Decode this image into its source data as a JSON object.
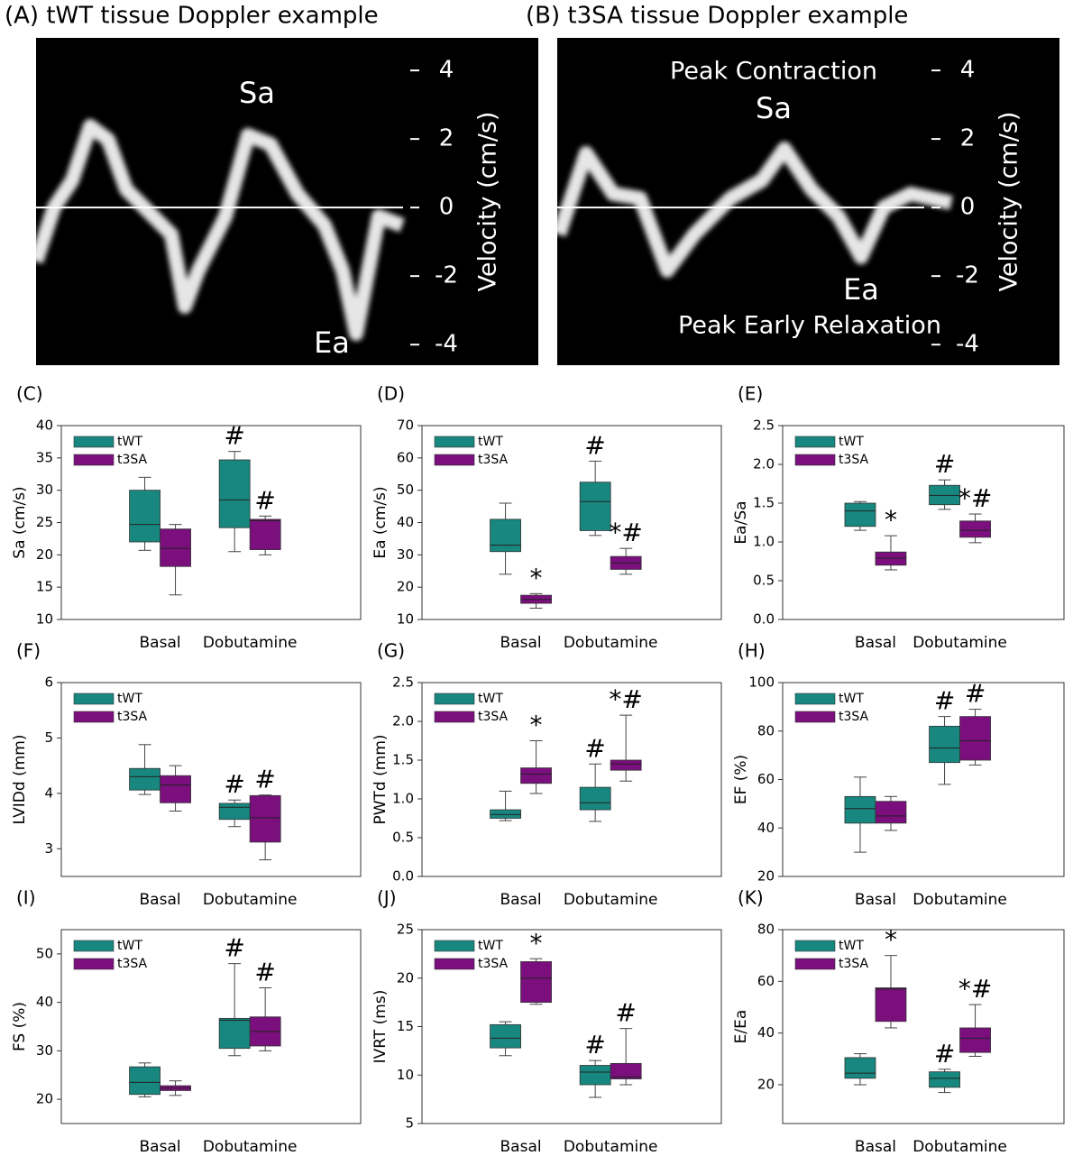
{
  "chart_data": [
    {
      "type": "doppler",
      "title": "(A) tWT tissue Doppler example",
      "ylabel": "Velocity (cm/s)",
      "ylim": [
        -4.6,
        4.95
      ],
      "yticks": [
        -4,
        -2,
        0,
        2,
        4
      ],
      "grid": true,
      "annotations": [
        "Sa",
        "Ea"
      ]
    },
    {
      "type": "doppler",
      "title": "(B) t3SA tissue Doppler example",
      "ylabel": "Velocity (cm/s)",
      "ylim": [
        -4.6,
        4.95
      ],
      "yticks": [
        -4,
        -2,
        0,
        2,
        4
      ],
      "grid": true,
      "annotations": [
        "Peak Contraction",
        "Sa",
        "Ea",
        "Peak Early Relaxation"
      ]
    },
    {
      "type": "box",
      "title": "(C)",
      "ylabel": "Sa (cm/s)",
      "categories": [
        "Basal",
        "Dobutamine"
      ],
      "ylim": [
        10,
        40
      ],
      "yticks": [
        10,
        15,
        20,
        25,
        30,
        35,
        40
      ],
      "series": [
        {
          "name": "tWT",
          "color": "#17877f",
          "low": [
            20.7,
            20.5
          ],
          "q1": [
            22,
            24.2
          ],
          "median": [
            24.7,
            28.5
          ],
          "q3": [
            30,
            34.7
          ],
          "high": [
            32,
            36
          ],
          "markers": [
            null,
            "#"
          ]
        },
        {
          "name": "t3SA",
          "color": "#7a0f7d",
          "low": [
            13.8,
            20
          ],
          "q1": [
            18.2,
            20.8
          ],
          "median": [
            21,
            25.3
          ],
          "q3": [
            24,
            25.5
          ],
          "high": [
            24.7,
            26
          ],
          "markers": [
            null,
            "#"
          ]
        }
      ]
    },
    {
      "type": "box",
      "title": "(D)",
      "ylabel": "Ea (cm/s)",
      "categories": [
        "Basal",
        "Dobutamine"
      ],
      "ylim": [
        10,
        70
      ],
      "yticks": [
        10,
        20,
        30,
        40,
        50,
        60,
        70
      ],
      "series": [
        {
          "name": "tWT",
          "color": "#17877f",
          "low": [
            24,
            36
          ],
          "q1": [
            31,
            37.5
          ],
          "median": [
            33,
            46.5
          ],
          "q3": [
            41,
            52.5
          ],
          "high": [
            46,
            59
          ],
          "markers": [
            null,
            "#"
          ]
        },
        {
          "name": "t3SA",
          "color": "#7a0f7d",
          "low": [
            13.5,
            24
          ],
          "q1": [
            15,
            25.5
          ],
          "median": [
            16.2,
            27.5
          ],
          "q3": [
            17.5,
            29.5
          ],
          "high": [
            18,
            32
          ],
          "markers": [
            "*",
            "*#"
          ]
        }
      ]
    },
    {
      "type": "box",
      "title": "(E)",
      "ylabel": "Ea/Sa",
      "categories": [
        "Basal",
        "Dobutamine"
      ],
      "ylim": [
        0,
        2.5
      ],
      "yticks": [
        {
          "value": 0,
          "label": "0.0"
        },
        0.5,
        {
          "value": 1,
          "label": "1.0"
        },
        1.5,
        {
          "value": 2,
          "label": "2.0"
        },
        2.5
      ],
      "series": [
        {
          "name": "tWT",
          "color": "#17877f",
          "low": [
            1.15,
            1.42
          ],
          "q1": [
            1.2,
            1.48
          ],
          "median": [
            1.4,
            1.6
          ],
          "q3": [
            1.5,
            1.73
          ],
          "high": [
            1.52,
            1.8
          ],
          "markers": [
            null,
            "#"
          ]
        },
        {
          "name": "t3SA",
          "color": "#7a0f7d",
          "low": [
            0.64,
            0.99
          ],
          "q1": [
            0.7,
            1.06
          ],
          "median": [
            0.79,
            1.15
          ],
          "q3": [
            0.87,
            1.27
          ],
          "high": [
            1.08,
            1.36
          ],
          "markers": [
            "*",
            "*#"
          ]
        }
      ]
    },
    {
      "type": "box",
      "title": "(F)",
      "ylabel": "LVIDd (mm)",
      "categories": [
        "Basal",
        "Dobutamine"
      ],
      "ylim": [
        2.5,
        6
      ],
      "yticks": [
        3,
        4,
        5,
        6
      ],
      "series": [
        {
          "name": "tWT",
          "color": "#17877f",
          "low": [
            3.98,
            3.4
          ],
          "q1": [
            4.06,
            3.53
          ],
          "median": [
            4.3,
            3.75
          ],
          "q3": [
            4.45,
            3.82
          ],
          "high": [
            4.88,
            3.88
          ],
          "markers": [
            null,
            "#"
          ]
        },
        {
          "name": "t3SA",
          "color": "#7a0f7d",
          "low": [
            3.68,
            2.8
          ],
          "q1": [
            3.83,
            3.12
          ],
          "median": [
            4.15,
            3.56
          ],
          "q3": [
            4.32,
            3.96
          ],
          "high": [
            4.5,
            3.97
          ],
          "markers": [
            null,
            "#"
          ]
        }
      ]
    },
    {
      "type": "box",
      "title": "(G)",
      "ylabel": "PWTd (mm)",
      "categories": [
        "Basal",
        "Dobutamine"
      ],
      "ylim": [
        0,
        2.5
      ],
      "yticks": [
        {
          "value": 0,
          "label": "0.0"
        },
        0.5,
        {
          "value": 1,
          "label": "1.0"
        },
        1.5,
        {
          "value": 2,
          "label": "2.0"
        },
        2.5
      ],
      "series": [
        {
          "name": "tWT",
          "color": "#17877f",
          "low": [
            0.72,
            0.71
          ],
          "q1": [
            0.75,
            0.86
          ],
          "median": [
            0.8,
            0.95
          ],
          "q3": [
            0.86,
            1.15
          ],
          "high": [
            1.1,
            1.45
          ],
          "markers": [
            null,
            "#"
          ]
        },
        {
          "name": "t3SA",
          "color": "#7a0f7d",
          "low": [
            1.07,
            1.23
          ],
          "q1": [
            1.2,
            1.37
          ],
          "median": [
            1.32,
            1.45
          ],
          "q3": [
            1.4,
            1.5
          ],
          "high": [
            1.75,
            2.08
          ],
          "markers": [
            "*",
            "*#"
          ]
        }
      ]
    },
    {
      "type": "box",
      "title": "(H)",
      "ylabel": "EF (%)",
      "categories": [
        "Basal",
        "Dobutamine"
      ],
      "ylim": [
        20,
        100
      ],
      "yticks": [
        20,
        40,
        60,
        80,
        100
      ],
      "series": [
        {
          "name": "tWT",
          "color": "#17877f",
          "low": [
            30,
            58
          ],
          "q1": [
            42,
            67
          ],
          "median": [
            48,
            73
          ],
          "q3": [
            53,
            82
          ],
          "high": [
            61,
            86
          ],
          "markers": [
            null,
            "#"
          ]
        },
        {
          "name": "t3SA",
          "color": "#7a0f7d",
          "low": [
            39,
            66
          ],
          "q1": [
            42,
            68
          ],
          "median": [
            45,
            76
          ],
          "q3": [
            51,
            86
          ],
          "high": [
            53,
            89
          ],
          "markers": [
            null,
            "#"
          ]
        }
      ]
    },
    {
      "type": "box",
      "title": "(I)",
      "ylabel": "FS (%)",
      "categories": [
        "Basal",
        "Dobutamine"
      ],
      "ylim": [
        15,
        55
      ],
      "yticks": [
        20,
        30,
        40,
        50
      ],
      "series": [
        {
          "name": "tWT",
          "color": "#17877f",
          "low": [
            20.5,
            29
          ],
          "q1": [
            21,
            30.5
          ],
          "median": [
            23.5,
            36.3
          ],
          "q3": [
            26.7,
            36.7
          ],
          "high": [
            27.5,
            48
          ],
          "markers": [
            null,
            "#"
          ]
        },
        {
          "name": "t3SA",
          "color": "#7a0f7d",
          "low": [
            20.8,
            30
          ],
          "q1": [
            21.8,
            31
          ],
          "median": [
            22.3,
            34
          ],
          "q3": [
            22.8,
            37
          ],
          "high": [
            23.8,
            43
          ],
          "markers": [
            null,
            "#"
          ]
        }
      ]
    },
    {
      "type": "box",
      "title": "(J)",
      "ylabel": "IVRT (ms)",
      "categories": [
        "Basal",
        "Dobutamine"
      ],
      "ylim": [
        5,
        25
      ],
      "yticks": [
        5,
        10,
        15,
        20,
        25
      ],
      "series": [
        {
          "name": "tWT",
          "color": "#17877f",
          "low": [
            12,
            7.7
          ],
          "q1": [
            12.8,
            9
          ],
          "median": [
            13.8,
            10.3
          ],
          "q3": [
            15.2,
            11
          ],
          "high": [
            15.5,
            11.5
          ],
          "markers": [
            null,
            "#"
          ]
        },
        {
          "name": "t3SA",
          "color": "#7a0f7d",
          "low": [
            17.3,
            9
          ],
          "q1": [
            17.5,
            9.6
          ],
          "median": [
            20,
            9.8
          ],
          "q3": [
            21.7,
            11.2
          ],
          "high": [
            22,
            14.8
          ],
          "markers": [
            "*",
            "#"
          ]
        }
      ]
    },
    {
      "type": "box",
      "title": "(K)",
      "ylabel": "E/Ea",
      "categories": [
        "Basal",
        "Dobutamine"
      ],
      "ylim": [
        5,
        80
      ],
      "yticks": [
        20,
        40,
        60,
        80
      ],
      "series": [
        {
          "name": "tWT",
          "color": "#17877f",
          "low": [
            20,
            17
          ],
          "q1": [
            22.5,
            19
          ],
          "median": [
            24.5,
            22.5
          ],
          "q3": [
            30.5,
            25
          ],
          "high": [
            32,
            26
          ],
          "markers": [
            null,
            "#"
          ]
        },
        {
          "name": "t3SA",
          "color": "#7a0f7d",
          "low": [
            42,
            31
          ],
          "q1": [
            44.5,
            32.5
          ],
          "median": [
            57,
            38
          ],
          "q3": [
            57.5,
            42
          ],
          "high": [
            70,
            51
          ],
          "markers": [
            "*",
            "*#"
          ]
        }
      ]
    }
  ]
}
